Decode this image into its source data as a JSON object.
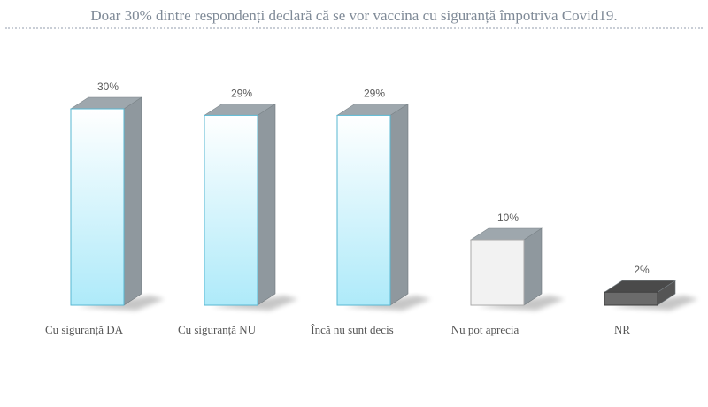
{
  "chart_data": {
    "type": "bar",
    "title": "Doar 30% dintre respondenți declară că se vor vaccina cu siguranță împotriva Covid19.",
    "categories": [
      "Cu siguranță DA",
      "Cu siguranță NU",
      "Încă nu sunt decis",
      "Nu pot aprecia",
      "NR"
    ],
    "values": [
      30,
      29,
      29,
      10,
      2
    ],
    "value_labels": [
      "30%",
      "29%",
      "29%",
      "10%",
      "2%"
    ],
    "ylim": [
      0,
      30
    ],
    "grid": false,
    "legend": "none",
    "colors": {
      "front_gradient_top": "#ffffff",
      "front_gradient_bottom": "#aeeaf9",
      "front_stroke": "#57b7d2",
      "top_face": "#9ea7ad",
      "side_face": "#8f989e",
      "nu_pot_front": "#f2f2f2",
      "nr_front": "#6b6b6b",
      "nr_top": "#4a4a4a",
      "nr_side": "#555555"
    }
  }
}
